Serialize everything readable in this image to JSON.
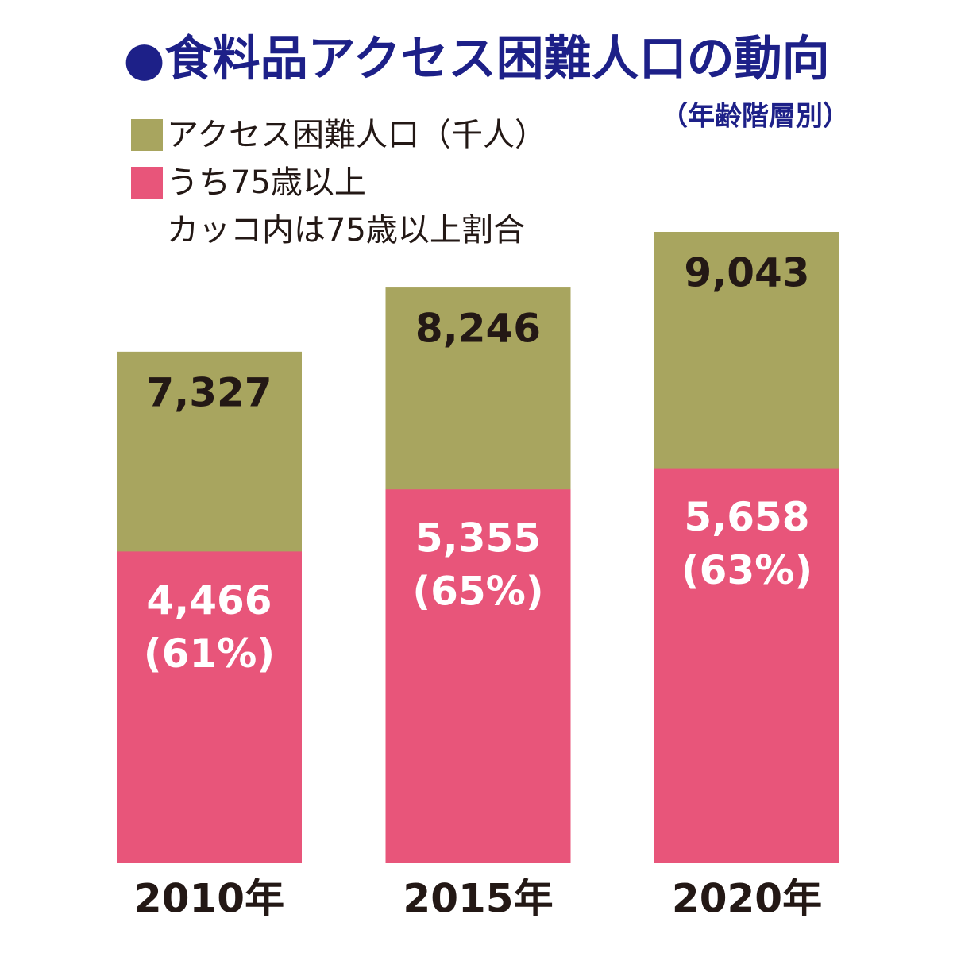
{
  "chart_data": {
    "type": "overlap-bar",
    "title": "●食料品アクセス困難人口の動向",
    "subtitle": "（年齢階層別）",
    "note": "カッコ内は75歳以上割合",
    "categories": [
      "2010年",
      "2015年",
      "2020年"
    ],
    "series": [
      {
        "name": "アクセス困難人口（千人）",
        "color": "#a8a55f",
        "label_color": "#231815",
        "values": [
          7327,
          8246,
          9043
        ],
        "value_labels": [
          "7,327",
          "8,246",
          "9,043"
        ]
      },
      {
        "name": "うち75歳以上",
        "color": "#e8557a",
        "label_color": "#ffffff",
        "values": [
          4466,
          5355,
          5658
        ],
        "value_labels": [
          "4,466",
          "5,355",
          "5,658"
        ],
        "share_values": [
          61,
          65,
          63
        ],
        "share_labels": [
          "(61%)",
          "(65%)",
          "(63%)"
        ]
      }
    ]
  }
}
